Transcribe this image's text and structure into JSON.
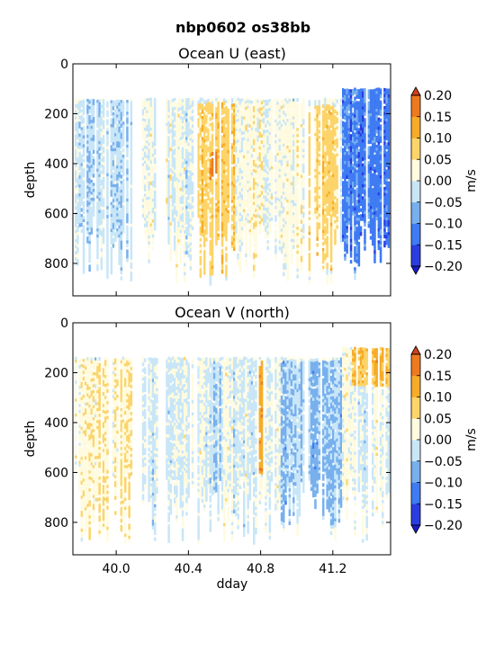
{
  "figure_title": "nbp0602 os38bb",
  "shared_xlabel": "dday",
  "colorbar_levels": [
    -0.2,
    -0.15,
    -0.1,
    -0.05,
    0.0,
    0.05,
    0.1,
    0.15,
    0.2
  ],
  "colorbar_tick_labels": [
    "−0.20",
    "−0.15",
    "−0.10",
    "−0.05",
    "0.00",
    "0.05",
    "0.10",
    "0.15",
    "0.20"
  ],
  "colorbar_colors": [
    "#2a3de0",
    "#3f7bf2",
    "#78b0ee",
    "#c9e6f7",
    "#fffbdf",
    "#fcd46a",
    "#f6ac28",
    "#ed7a1f"
  ],
  "colorbar_under_color": "#1a1ad0",
  "colorbar_over_color": "#d0401a",
  "x_tick_labels": [
    "40.0",
    "40.4",
    "40.8",
    "41.2"
  ],
  "y_tick_labels": [
    "0",
    "200",
    "400",
    "600",
    "800"
  ],
  "chart_data": [
    {
      "type": "heatmap",
      "title": "Ocean U (east)",
      "xlabel": "",
      "ylabel": "depth",
      "colorbar_label": "m/s",
      "xlim": [
        39.76,
        41.52
      ],
      "ylim": [
        930,
        0
      ],
      "x_ticks": [
        40.0,
        40.4,
        40.8,
        41.2
      ],
      "y_ticks": [
        0,
        200,
        400,
        600,
        800
      ],
      "data_x_range": [
        39.77,
        41.51
      ],
      "data_depth_top": 135,
      "data_depth_bottom_range": [
        600,
        880
      ],
      "gaps_dday": [
        [
          40.08,
          40.14
        ],
        [
          40.22,
          40.27
        ],
        [
          40.42,
          40.44
        ],
        [
          41.04,
          41.06
        ]
      ],
      "features": [
        {
          "dday_range": [
            39.77,
            40.08
          ],
          "depth_range": [
            140,
            860
          ],
          "value_approx": -0.03
        },
        {
          "dday_range": [
            40.44,
            40.65
          ],
          "depth_range": [
            150,
            850
          ],
          "value_approx": 0.08
        },
        {
          "dday_range": [
            40.51,
            40.55
          ],
          "depth_range": [
            350,
            460
          ],
          "value_approx": 0.16
        },
        {
          "dday_range": [
            40.66,
            41.03
          ],
          "depth_range": [
            150,
            820
          ],
          "value_approx": 0.02
        },
        {
          "dday_range": [
            41.06,
            41.23
          ],
          "depth_range": [
            160,
            820
          ],
          "value_approx": 0.07
        },
        {
          "dday_range": [
            41.24,
            41.51
          ],
          "depth_range": [
            95,
            830
          ],
          "value_approx": -0.12
        }
      ]
    },
    {
      "type": "heatmap",
      "title": "Ocean V (north)",
      "xlabel": "dday",
      "ylabel": "depth",
      "colorbar_label": "m/s",
      "xlim": [
        39.76,
        41.52
      ],
      "ylim": [
        930,
        0
      ],
      "x_ticks": [
        40.0,
        40.4,
        40.8,
        41.2
      ],
      "y_ticks": [
        0,
        200,
        400,
        600,
        800
      ],
      "data_x_range": [
        39.77,
        41.51
      ],
      "data_depth_top": 135,
      "data_depth_bottom_range": [
        600,
        880
      ],
      "gaps_dday": [
        [
          40.08,
          40.14
        ],
        [
          40.22,
          40.27
        ],
        [
          40.42,
          40.44
        ],
        [
          41.04,
          41.06
        ]
      ],
      "features": [
        {
          "dday_range": [
            39.77,
            40.08
          ],
          "depth_range": [
            140,
            860
          ],
          "value_approx": 0.04
        },
        {
          "dday_range": [
            40.1,
            40.12
          ],
          "depth_range": [
            380,
            640
          ],
          "value_approx": 0.12
        },
        {
          "dday_range": [
            40.52,
            40.58
          ],
          "depth_range": [
            150,
            800
          ],
          "value_approx": -0.04
        },
        {
          "dday_range": [
            40.78,
            40.82
          ],
          "depth_range": [
            150,
            600
          ],
          "value_approx": 0.12
        },
        {
          "dday_range": [
            40.9,
            41.25
          ],
          "depth_range": [
            150,
            800
          ],
          "value_approx": -0.05
        },
        {
          "dday_range": [
            41.3,
            41.51
          ],
          "depth_range": [
            95,
            250
          ],
          "value_approx": 0.1
        }
      ]
    }
  ]
}
